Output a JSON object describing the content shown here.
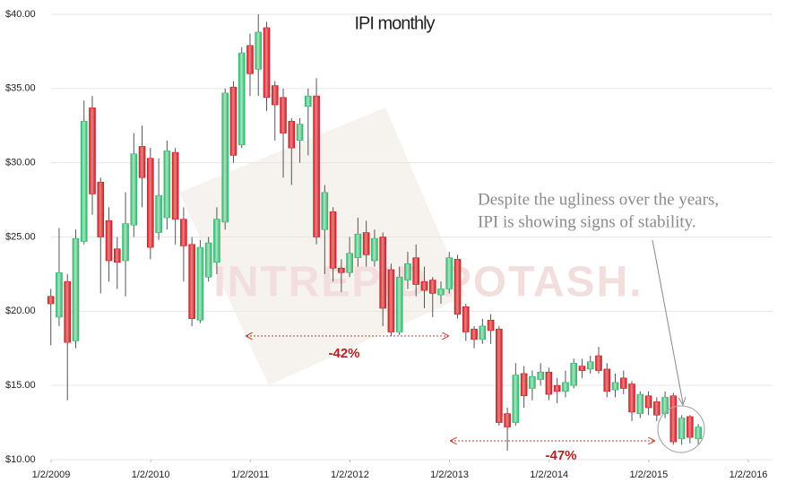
{
  "chart_data": {
    "type": "candlestick",
    "title": "IPI monthly",
    "watermark": "INTREPID POTASH.",
    "up_color": "#2fb46a",
    "down_color": "#c81d25",
    "grid": true,
    "x": [
      "2009-01",
      "2009-02",
      "2009-03",
      "2009-04",
      "2009-05",
      "2009-06",
      "2009-07",
      "2009-08",
      "2009-09",
      "2009-10",
      "2009-11",
      "2009-12",
      "2010-01",
      "2010-02",
      "2010-03",
      "2010-04",
      "2010-05",
      "2010-06",
      "2010-07",
      "2010-08",
      "2010-09",
      "2010-10",
      "2010-11",
      "2010-12",
      "2011-01",
      "2011-02",
      "2011-03",
      "2011-04",
      "2011-05",
      "2011-06",
      "2011-07",
      "2011-08",
      "2011-09",
      "2011-10",
      "2011-11",
      "2011-12",
      "2012-01",
      "2012-02",
      "2012-03",
      "2012-04",
      "2012-05",
      "2012-06",
      "2012-07",
      "2012-08",
      "2012-09",
      "2012-10",
      "2012-11",
      "2012-12",
      "2013-01",
      "2013-02",
      "2013-03",
      "2013-04",
      "2013-05",
      "2013-06",
      "2013-07",
      "2013-08",
      "2013-09",
      "2013-10",
      "2013-11",
      "2013-12",
      "2014-01",
      "2014-02",
      "2014-03",
      "2014-04",
      "2014-05",
      "2014-06",
      "2014-07",
      "2014-08",
      "2014-09",
      "2014-10",
      "2014-11",
      "2014-12",
      "2015-01",
      "2015-02",
      "2015-03",
      "2015-04",
      "2015-05",
      "2015-06",
      "2015-07"
    ],
    "open": [
      21,
      19.6,
      22,
      18,
      24.7,
      33.7,
      28.7,
      26.1,
      24.2,
      23.4,
      25.8,
      31.1,
      30.3,
      25.3,
      26.3,
      30.7,
      26.2,
      24.5,
      19.4,
      22.3,
      23.3,
      26,
      35.1,
      31.2,
      37.9,
      36.3,
      39.1,
      35.2,
      34.4,
      32.8,
      31.5,
      33.8,
      34.5,
      25.5,
      26.7,
      22.9,
      22.6,
      23.6,
      25.3,
      23.4,
      25,
      22.8,
      18.6,
      22.1,
      23.6,
      22,
      22.1,
      21.1,
      21.5,
      23.5,
      20.3,
      18.8,
      18.1,
      19.4,
      18.8,
      13.1,
      12.5,
      15.8,
      14.8,
      15.4,
      15.9,
      15,
      14.6,
      15,
      16.3,
      16.1,
      17,
      16.1,
      14.7,
      15.5,
      15.1,
      13.1,
      14.3,
      13.9,
      13.1,
      14.3,
      11.4,
      12.9,
      11.4
    ],
    "high": [
      21.5,
      25.6,
      22.5,
      25.5,
      34.2,
      34.5,
      29,
      27,
      25,
      28,
      32,
      32.5,
      31,
      30.3,
      31.5,
      31,
      27,
      25,
      24.8,
      25,
      27,
      35,
      35.5,
      37.8,
      38.7,
      40,
      39.5,
      35.5,
      35,
      33,
      33,
      35,
      35.7,
      28.5,
      27,
      23.5,
      25,
      26.3,
      26.1,
      25.5,
      25.3,
      23.2,
      23,
      24,
      24.5,
      23,
      22.3,
      22,
      24,
      23.8,
      20.5,
      19,
      19.5,
      19.8,
      19,
      13.5,
      16.5,
      16.3,
      16,
      16.5,
      16.2,
      15.5,
      16,
      16.8,
      16.8,
      17,
      17.6,
      16.5,
      15.8,
      16,
      15.3,
      14.6,
      14.6,
      14.2,
      14.6,
      14.5,
      13,
      13,
      12.4
    ],
    "low": [
      17.7,
      19,
      14,
      17.5,
      24.5,
      26.5,
      21.2,
      22,
      21.5,
      21,
      25,
      27,
      23.5,
      24.8,
      25.5,
      24.5,
      22,
      19,
      19.2,
      22,
      22.5,
      25.5,
      30,
      31,
      34.5,
      34.5,
      33.5,
      31.5,
      29,
      28.5,
      30,
      30.5,
      24.5,
      22.5,
      22,
      21.3,
      22.3,
      23,
      23,
      23,
      19,
      18.3,
      18.4,
      21.5,
      21,
      20.2,
      19.6,
      20.5,
      21.2,
      19.5,
      18,
      17.5,
      17.8,
      17.8,
      12.3,
      10.6,
      12.3,
      13.5,
      14,
      15,
      14,
      13.8,
      14.2,
      14.8,
      15.5,
      15.8,
      15.8,
      14.2,
      14.2,
      14.4,
      12.6,
      12.8,
      13,
      12.6,
      12.8,
      11,
      11,
      11.1,
      11
    ],
    "close": [
      20.5,
      22.6,
      17.9,
      24.9,
      32.8,
      27.9,
      25,
      23.4,
      23.3,
      25.9,
      30.6,
      29,
      24.3,
      27.8,
      30.8,
      26.2,
      24.4,
      19.5,
      24.3,
      24.6,
      26.2,
      34.7,
      30.5,
      37.4,
      36,
      38.8,
      34.4,
      33.9,
      32,
      31,
      32.6,
      34.5,
      25,
      28,
      22.9,
      22.6,
      23.9,
      25.2,
      23.8,
      24.9,
      20.2,
      18.6,
      22.3,
      23.2,
      21.8,
      21.4,
      21.2,
      21.5,
      23.6,
      19.8,
      18.6,
      18.1,
      19,
      18.7,
      12.5,
      12.2,
      15.7,
      14.3,
      15.6,
      15.9,
      14.4,
      14.6,
      15.2,
      16.5,
      16,
      16.6,
      16,
      14.6,
      15.2,
      14.8,
      13.2,
      14.4,
      13.5,
      13,
      14.2,
      11.2,
      12.8,
      11.5,
      12.2
    ],
    "xlim": [
      "2009-01-02",
      "2016-01-02"
    ],
    "xticks": [
      {
        "value": "2009-01-02",
        "label": "1/2/2009"
      },
      {
        "value": "2010-01-02",
        "label": "1/2/2010"
      },
      {
        "value": "2011-01-02",
        "label": "1/2/2011"
      },
      {
        "value": "2012-01-02",
        "label": "1/2/2012"
      },
      {
        "value": "2013-01-02",
        "label": "1/2/2013"
      },
      {
        "value": "2014-01-02",
        "label": "1/2/2014"
      },
      {
        "value": "2015-01-02",
        "label": "1/2/2015"
      },
      {
        "value": "2016-01-02",
        "label": "1/2/2016"
      }
    ],
    "ylim": [
      10,
      40
    ],
    "yticks": [
      {
        "value": 10,
        "label": "$10.00"
      },
      {
        "value": 15,
        "label": "$15.00"
      },
      {
        "value": 20,
        "label": "$20.00"
      },
      {
        "value": 25,
        "label": "$25.00"
      },
      {
        "value": 30,
        "label": "$30.00"
      },
      {
        "value": 35,
        "label": "$35.00"
      },
      {
        "value": 40,
        "label": "$40.00"
      }
    ],
    "annotations": [
      "-42%",
      "-47%",
      "Despite the ugliness over the years,",
      "IPI is showing signs of stability."
    ]
  }
}
